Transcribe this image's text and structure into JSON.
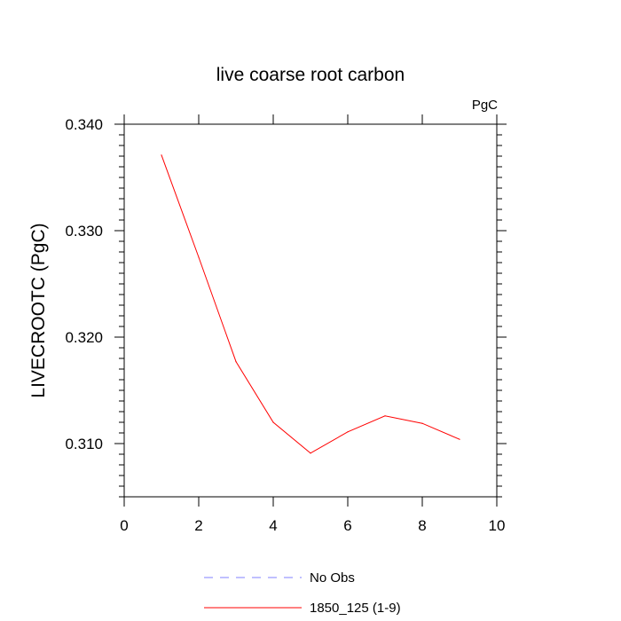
{
  "chart_data": {
    "type": "line",
    "title": "live coarse root carbon",
    "units_label": "PgC",
    "xlabel": "",
    "ylabel": "LIVECROOTC  (PgC)",
    "xlim": [
      0,
      10
    ],
    "ylim": [
      0.305,
      0.34
    ],
    "x_ticks": [
      0,
      2,
      4,
      6,
      8,
      10
    ],
    "x_tick_labels": [
      "0",
      "2",
      "4",
      "6",
      "8",
      "10"
    ],
    "y_ticks": [
      0.31,
      0.32,
      0.33,
      0.34
    ],
    "y_tick_labels": [
      "0.310",
      "0.320",
      "0.330",
      "0.340"
    ],
    "grid": false,
    "legend_placement": "bottom-center",
    "series": [
      {
        "name": "1850_125 (1-9)",
        "color": "#ff0000",
        "dash": "solid",
        "x": [
          1,
          2,
          3,
          4,
          5,
          6,
          7,
          8,
          9
        ],
        "y": [
          0.3371,
          0.3275,
          0.3177,
          0.312,
          0.3091,
          0.3111,
          0.3126,
          0.3119,
          0.3104
        ]
      }
    ],
    "legend": [
      {
        "label": "No Obs",
        "color": "#8080ff",
        "dash": "dashed"
      },
      {
        "label": "1850_125 (1-9)",
        "color": "#ff0000",
        "dash": "solid"
      }
    ]
  }
}
